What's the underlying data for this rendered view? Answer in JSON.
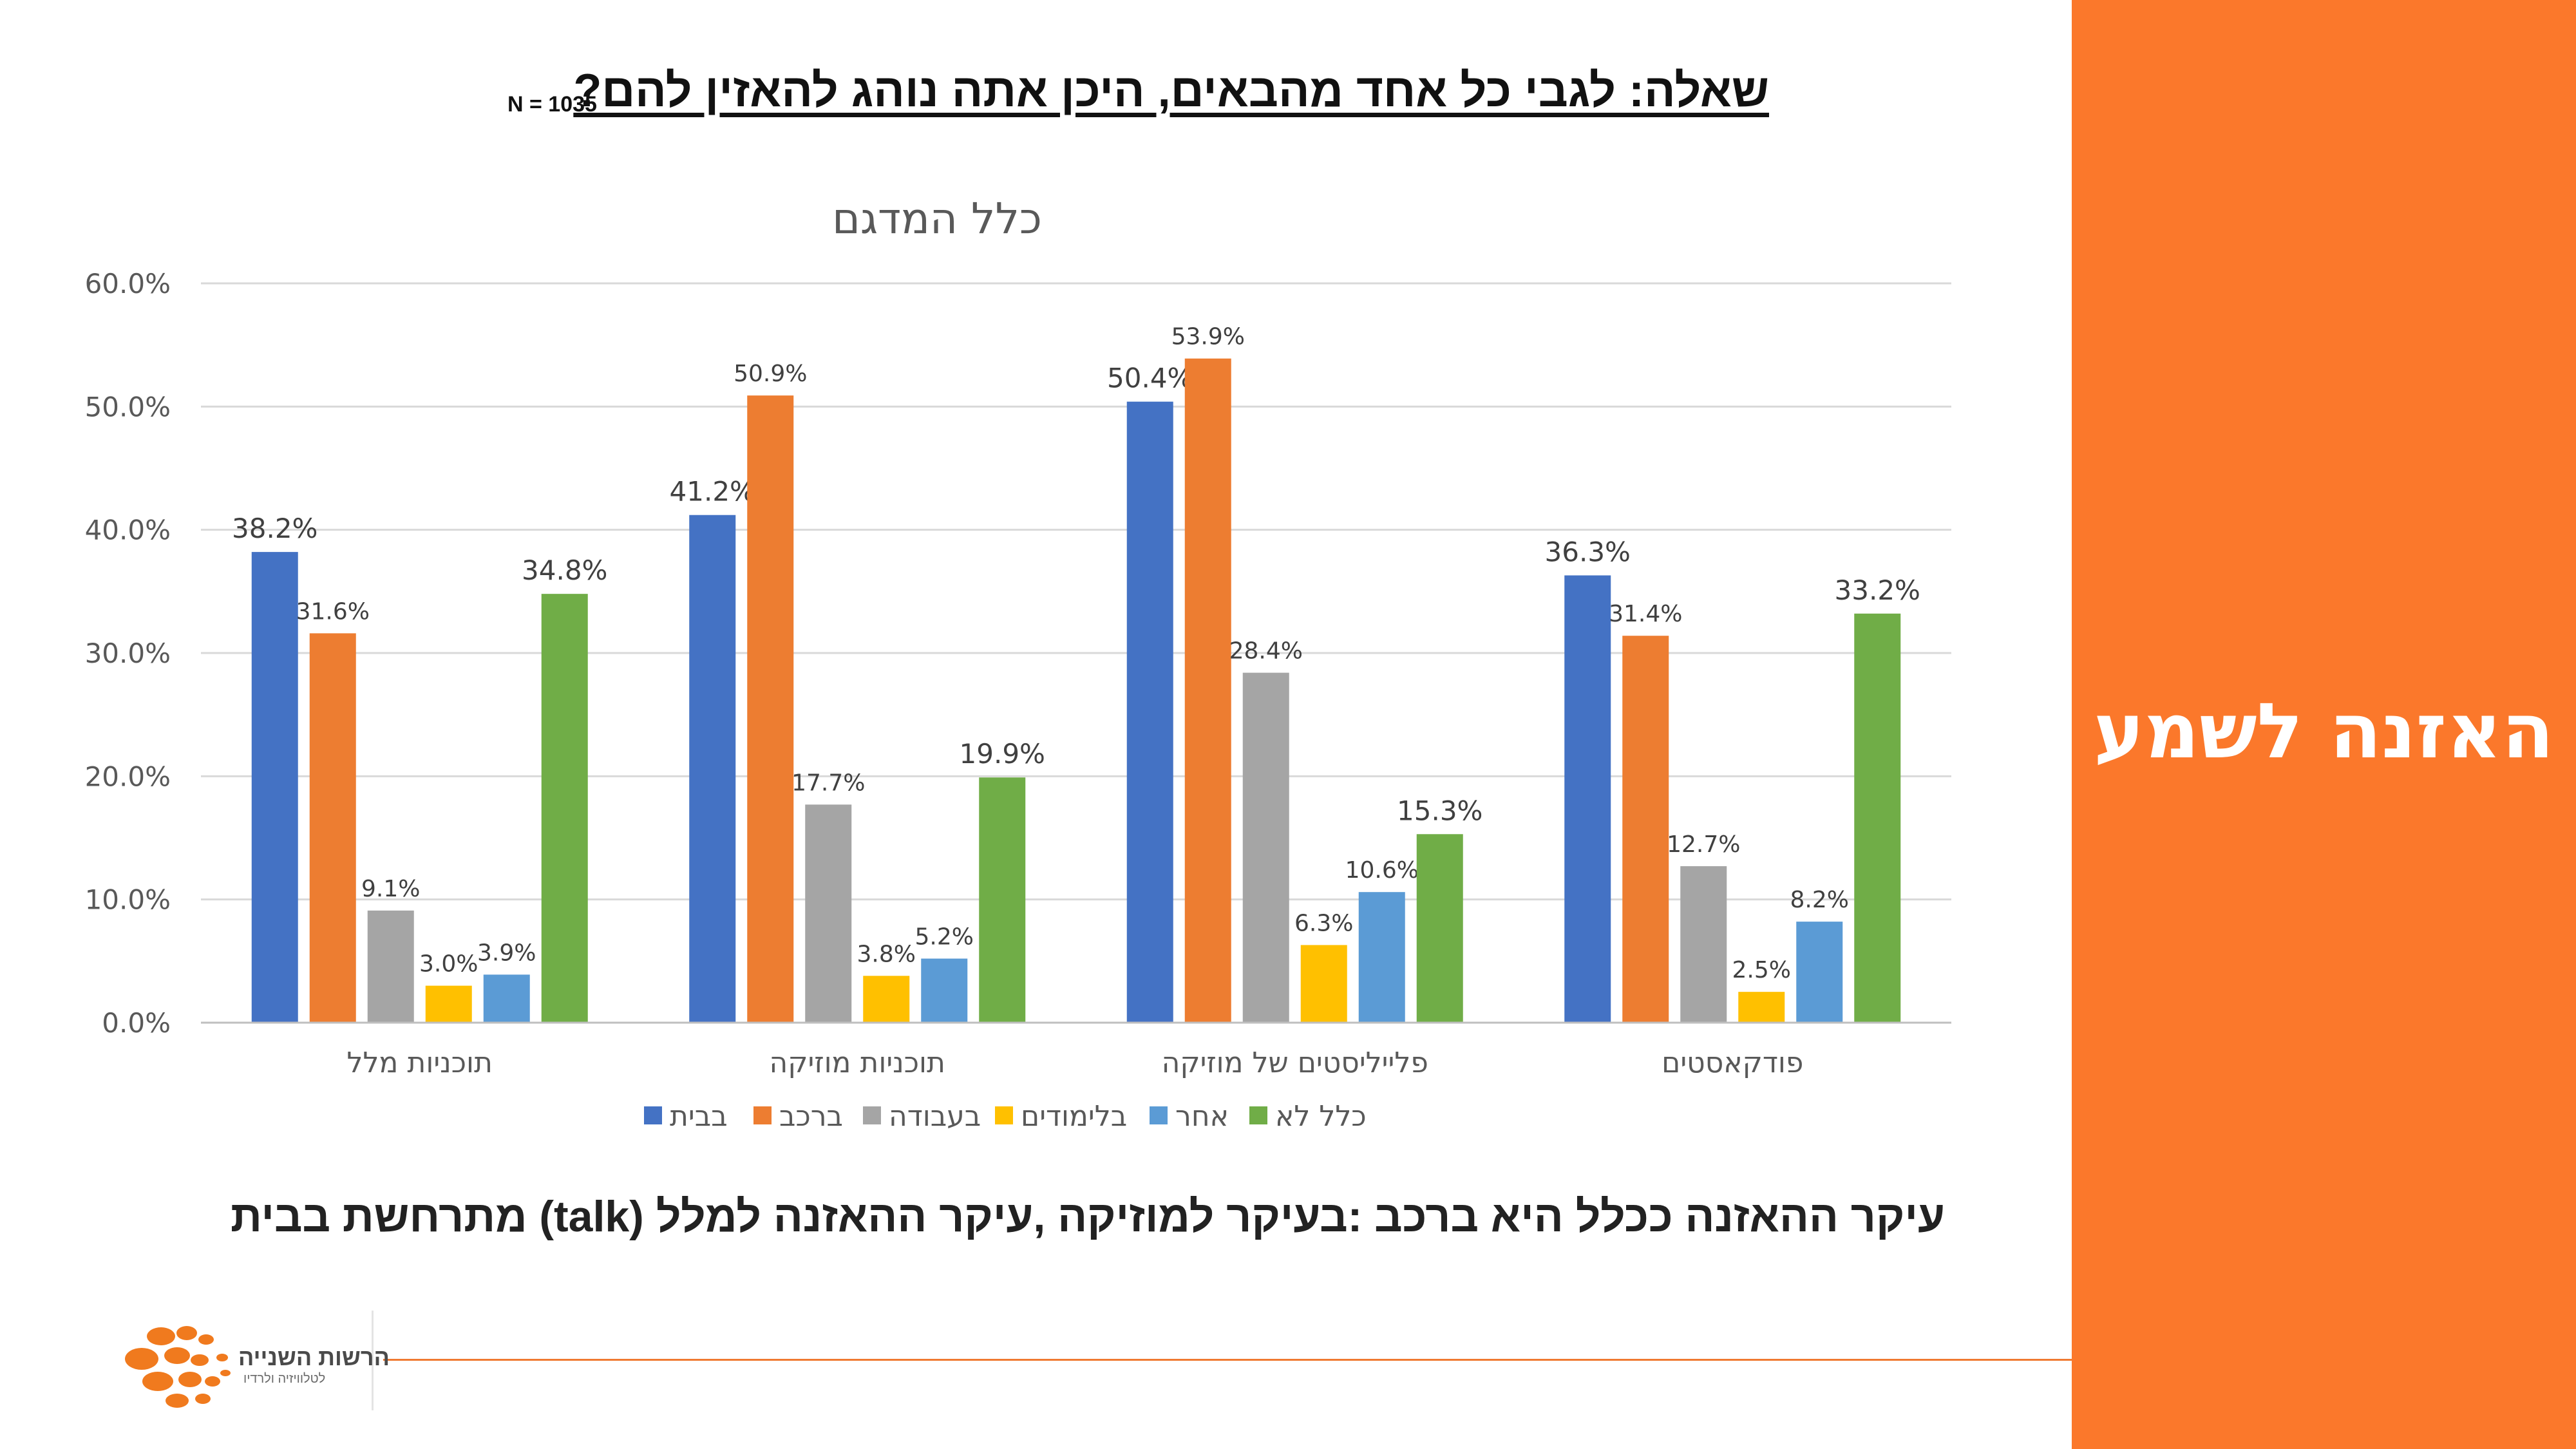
{
  "slide": {
    "side_title": "האזנה לשמע",
    "question": "שאלה: לגבי כל אחד מהבאים, היכן אתה נוהג להאזין להם?",
    "n_label": "N = 1035",
    "conclusion": "עיקר ההאזנה ככלל היא ברכב :בעיקר למוזיקה ,עיקר ההאזנה למלל (talk) מתרחשת בבית",
    "logo_text": "הרשות השנייה",
    "logo_subtext": "לטלוויזיה ולרדיו"
  },
  "chart_data": {
    "type": "bar",
    "title": "כלל המדגם",
    "categories": [
      "תוכניות מלל",
      "תוכניות מוזיקה",
      "פלייליסטים של מוזיקה",
      "פודקאסטים"
    ],
    "series": [
      {
        "name": "בבית",
        "color": "#4472C4",
        "values": [
          38.2,
          41.2,
          50.4,
          36.3
        ]
      },
      {
        "name": "ברכב",
        "color": "#ED7D31",
        "values": [
          31.6,
          50.9,
          53.9,
          31.4
        ]
      },
      {
        "name": "בעבודה",
        "color": "#A5A5A5",
        "values": [
          9.1,
          17.7,
          28.4,
          12.7
        ]
      },
      {
        "name": "בלימודים",
        "color": "#FFC000",
        "values": [
          3.0,
          3.8,
          6.3,
          2.5
        ]
      },
      {
        "name": "אחר",
        "color": "#5B9BD5",
        "values": [
          3.9,
          5.2,
          10.6,
          8.2
        ]
      },
      {
        "name": "כלל לא",
        "color": "#70AD47",
        "values": [
          34.8,
          19.9,
          15.3,
          33.2
        ]
      }
    ],
    "y_ticks": [
      "0.0%",
      "10.0%",
      "20.0%",
      "30.0%",
      "40.0%",
      "50.0%",
      "60.0%"
    ],
    "ylim": [
      0,
      60
    ],
    "grid": true,
    "legend": "bottom",
    "value_suffix": "%"
  }
}
